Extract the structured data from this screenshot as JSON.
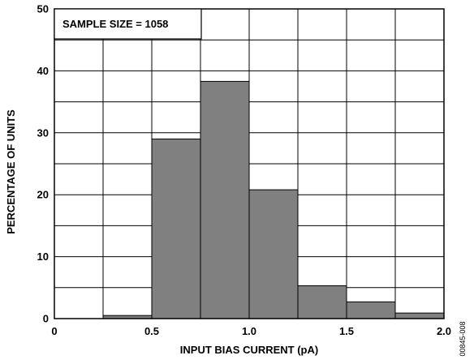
{
  "chart_data": {
    "type": "bar",
    "title": "",
    "xlabel": "INPUT BIAS CURRENT (pA)",
    "ylabel": "PERCENTAGE OF UNITS",
    "xlim": [
      0,
      2.0
    ],
    "ylim": [
      0,
      50
    ],
    "x_ticks": [
      "0",
      "0.5",
      "1.0",
      "1.5",
      "2.0"
    ],
    "y_ticks": [
      "0",
      "10",
      "20",
      "30",
      "40",
      "50"
    ],
    "bin_width": 0.25,
    "bins": [
      {
        "start": 0.0,
        "end": 0.25,
        "value": 0
      },
      {
        "start": 0.25,
        "end": 0.5,
        "value": 0.5
      },
      {
        "start": 0.5,
        "end": 0.75,
        "value": 29
      },
      {
        "start": 0.75,
        "end": 1.0,
        "value": 38.3
      },
      {
        "start": 1.0,
        "end": 1.25,
        "value": 20.8
      },
      {
        "start": 1.25,
        "end": 1.5,
        "value": 5.3
      },
      {
        "start": 1.5,
        "end": 1.75,
        "value": 2.7
      },
      {
        "start": 1.75,
        "end": 2.0,
        "value": 0.9
      }
    ],
    "grid": true,
    "annotation": "SAMPLE SIZE = 1058",
    "bar_color": "#808080",
    "figure_id": "00845-008"
  }
}
